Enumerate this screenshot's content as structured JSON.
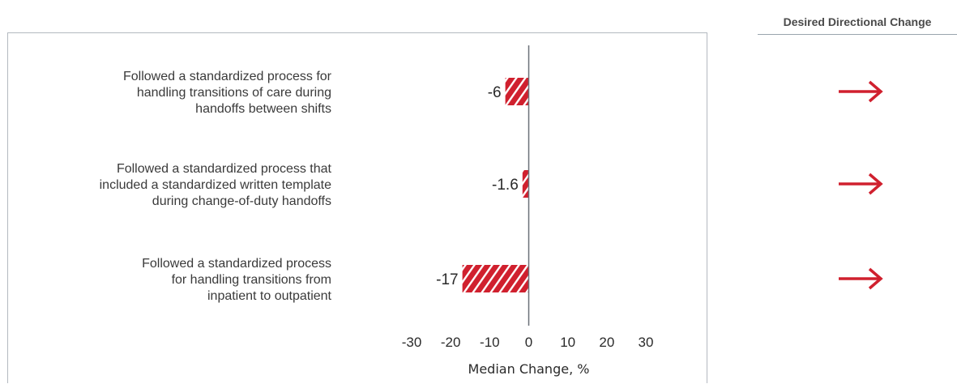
{
  "ddc_header": "Desired Directional Change",
  "colors": {
    "bar": "#d0202e",
    "hatch": "#ffffff",
    "arrow": "#d0202e",
    "axis": "#6a7078"
  },
  "chart_data": {
    "type": "bar",
    "orientation": "horizontal",
    "categories": [
      [
        "Followed a standardized process for",
        "handling transitions of care during",
        "handoffs between shifts"
      ],
      [
        "Followed a standardized process that",
        "included a standardized written template",
        "during change-of-duty handoffs"
      ],
      [
        "Followed a standardized process",
        "for handling transitions from",
        "inpatient to outpatient"
      ]
    ],
    "values": [
      -6,
      -1.6,
      -17
    ],
    "value_labels": [
      "-6",
      "-1.6",
      "-17"
    ],
    "bar_pattern": "diagonal-hatch",
    "xlabel": "Median Change, %",
    "xlim": [
      -30,
      30
    ],
    "xticks": [
      -30,
      -20,
      -10,
      0,
      10,
      20,
      30
    ],
    "xtick_labels": [
      "-30",
      "-20",
      "-10",
      "0",
      "10",
      "20",
      "30"
    ],
    "grid": false,
    "desired_direction": [
      "right-arrow-icon",
      "right-arrow-icon",
      "right-arrow-icon"
    ]
  }
}
